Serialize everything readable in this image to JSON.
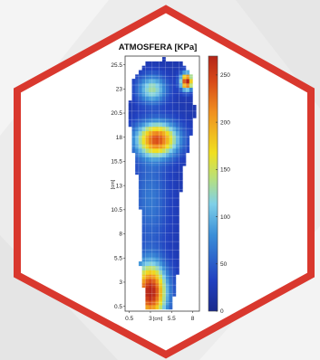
{
  "colors": {
    "frame": "#d9382e",
    "background": "#ececec",
    "scale_low": "#1a2a8c",
    "scale_high": "#b42418"
  },
  "chart_data": {
    "type": "heatmap",
    "title": "ATMOSFERA [KPa]",
    "xlabel": "[cm]",
    "ylabel": "[cm]",
    "x_ticks": [
      "0.5",
      "3",
      "5.5",
      "8"
    ],
    "x_tick_values": [
      0.5,
      3,
      5.5,
      8
    ],
    "y_ticks": [
      "25.5",
      "23",
      "20.5",
      "18",
      "15.5",
      "13",
      "10.5",
      "8",
      "5.5",
      "3",
      "0.5"
    ],
    "y_tick_values": [
      25.5,
      23,
      20.5,
      18,
      15.5,
      13,
      10.5,
      8,
      5.5,
      3,
      0.5
    ],
    "xlim": [
      0,
      8.8
    ],
    "ylim": [
      0,
      26.4
    ],
    "colorbar_ticks": [
      "0",
      "50",
      "100",
      "150",
      "200",
      "250"
    ],
    "colorbar_values": [
      0,
      50,
      100,
      150,
      200,
      250
    ],
    "value_range": [
      0,
      270
    ],
    "grid": true,
    "colorbar_position": "right",
    "regions": [
      {
        "name": "heel",
        "x": 3.0,
        "y": 2.0,
        "sx": 1.3,
        "sy": 2.0,
        "peak": 255
      },
      {
        "name": "forefoot",
        "x": 3.8,
        "y": 17.8,
        "sx": 1.7,
        "sy": 1.2,
        "peak": 215
      },
      {
        "name": "hallux",
        "x": 7.3,
        "y": 23.8,
        "sx": 0.5,
        "sy": 0.6,
        "peak": 255
      },
      {
        "name": "lesser-toes",
        "x": 3.2,
        "y": 23.0,
        "sx": 1.2,
        "sy": 1.0,
        "peak": 110
      },
      {
        "name": "lateral-midfoot",
        "x": 3.0,
        "y": 11.5,
        "sx": 1.5,
        "sy": 3.5,
        "peak": 45
      }
    ]
  }
}
